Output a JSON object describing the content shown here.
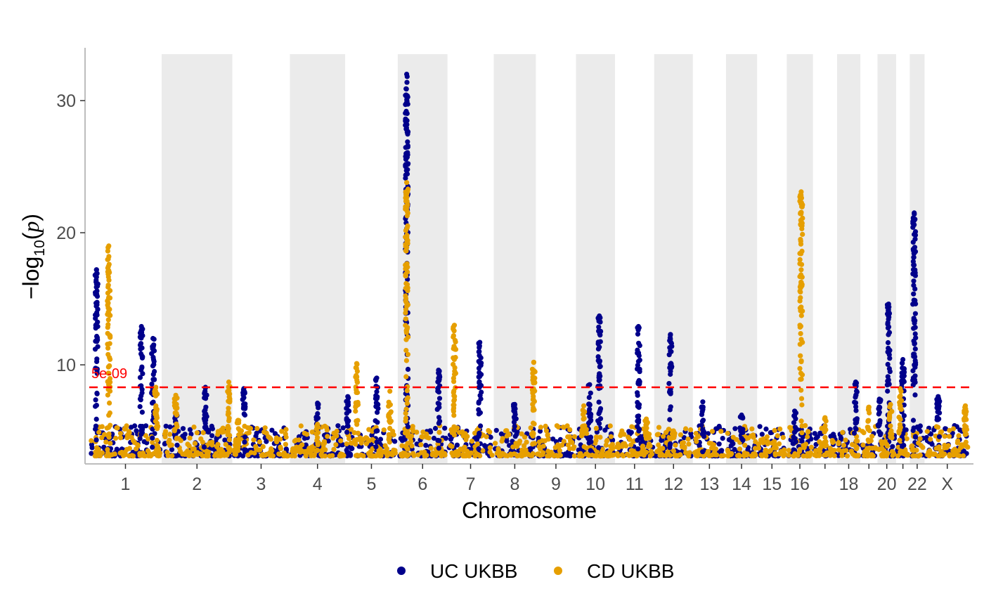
{
  "chart_data": {
    "type": "scatter",
    "title": "",
    "xlabel": "Chromosome",
    "ylabel_parts": [
      "−log",
      "10",
      "(",
      "p",
      ")"
    ],
    "ylim": [
      2.5,
      34
    ],
    "yticks": [
      10,
      20,
      30
    ],
    "threshold": {
      "value": 8.3,
      "label": "5e-09",
      "color": "#ff0000"
    },
    "legend": {
      "position": "bottom"
    },
    "colors": {
      "uc": "#00008b",
      "cd": "#e69f00",
      "band": "#ebebeb",
      "axis": "#bdbdbd"
    },
    "chromosomes": [
      {
        "id": "1",
        "label": "1",
        "len": 249
      },
      {
        "id": "2",
        "label": "2",
        "len": 243
      },
      {
        "id": "3",
        "label": "3",
        "len": 198
      },
      {
        "id": "4",
        "label": "4",
        "len": 190
      },
      {
        "id": "5",
        "label": "5",
        "len": 181
      },
      {
        "id": "6",
        "label": "6",
        "len": 171
      },
      {
        "id": "7",
        "label": "7",
        "len": 159
      },
      {
        "id": "8",
        "label": "8",
        "len": 145
      },
      {
        "id": "9",
        "label": "9",
        "len": 138
      },
      {
        "id": "10",
        "label": "10",
        "len": 134
      },
      {
        "id": "11",
        "label": "11",
        "len": 135
      },
      {
        "id": "12",
        "label": "12",
        "len": 133
      },
      {
        "id": "13",
        "label": "13",
        "len": 114
      },
      {
        "id": "14",
        "label": "14",
        "len": 107
      },
      {
        "id": "15",
        "label": "15",
        "len": 102
      },
      {
        "id": "16",
        "label": "16",
        "len": 90
      },
      {
        "id": "17",
        "label": "",
        "len": 83
      },
      {
        "id": "18",
        "label": "18",
        "len": 80
      },
      {
        "id": "19",
        "label": "",
        "len": 59
      },
      {
        "id": "20",
        "label": "20",
        "len": 64
      },
      {
        "id": "21",
        "label": "",
        "len": 47
      },
      {
        "id": "22",
        "label": "22",
        "len": 51
      },
      {
        "id": "X",
        "label": "X",
        "len": 156
      }
    ],
    "series": [
      {
        "name": "UC UKBB",
        "color": "#00008b",
        "peaks": [
          {
            "chr": "1",
            "pos": 0.1,
            "max": 17.2
          },
          {
            "chr": "1",
            "pos": 0.72,
            "max": 12.9
          },
          {
            "chr": "1",
            "pos": 0.88,
            "max": 12.0
          },
          {
            "chr": "2",
            "pos": 0.2,
            "max": 6.2
          },
          {
            "chr": "2",
            "pos": 0.62,
            "max": 8.3
          },
          {
            "chr": "3",
            "pos": 0.2,
            "max": 8.2
          },
          {
            "chr": "4",
            "pos": 0.5,
            "max": 7.1
          },
          {
            "chr": "5",
            "pos": 0.05,
            "max": 7.6
          },
          {
            "chr": "5",
            "pos": 0.6,
            "max": 9.0
          },
          {
            "chr": "6",
            "pos": 0.18,
            "max": 32.0
          },
          {
            "chr": "6",
            "pos": 0.82,
            "max": 9.6
          },
          {
            "chr": "7",
            "pos": 0.7,
            "max": 11.7
          },
          {
            "chr": "8",
            "pos": 0.5,
            "max": 7.0
          },
          {
            "chr": "10",
            "pos": 0.6,
            "max": 13.7
          },
          {
            "chr": "10",
            "pos": 0.35,
            "max": 8.5
          },
          {
            "chr": "11",
            "pos": 0.6,
            "max": 12.9
          },
          {
            "chr": "12",
            "pos": 0.42,
            "max": 12.3
          },
          {
            "chr": "13",
            "pos": 0.3,
            "max": 7.2
          },
          {
            "chr": "14",
            "pos": 0.5,
            "max": 6.2
          },
          {
            "chr": "16",
            "pos": 0.3,
            "max": 6.5
          },
          {
            "chr": "18",
            "pos": 0.8,
            "max": 8.7
          },
          {
            "chr": "20",
            "pos": 0.1,
            "max": 7.4
          },
          {
            "chr": "20",
            "pos": 0.6,
            "max": 14.6
          },
          {
            "chr": "21",
            "pos": 0.5,
            "max": 10.4
          },
          {
            "chr": "22",
            "pos": 0.3,
            "max": 21.5
          },
          {
            "chr": "X",
            "pos": 0.3,
            "max": 7.6
          }
        ]
      },
      {
        "name": "CD UKBB",
        "color": "#e69f00",
        "peaks": [
          {
            "chr": "1",
            "pos": 0.27,
            "max": 19.0
          },
          {
            "chr": "1",
            "pos": 0.92,
            "max": 8.3
          },
          {
            "chr": "2",
            "pos": 0.2,
            "max": 7.7
          },
          {
            "chr": "2",
            "pos": 0.95,
            "max": 8.7
          },
          {
            "chr": "3",
            "pos": 0.1,
            "max": 5.8
          },
          {
            "chr": "4",
            "pos": 0.5,
            "max": 5.5
          },
          {
            "chr": "5",
            "pos": 0.22,
            "max": 10.1
          },
          {
            "chr": "5",
            "pos": 0.85,
            "max": 8.0
          },
          {
            "chr": "6",
            "pos": 0.18,
            "max": 23.8
          },
          {
            "chr": "7",
            "pos": 0.15,
            "max": 13.0
          },
          {
            "chr": "8",
            "pos": 0.95,
            "max": 10.2
          },
          {
            "chr": "10",
            "pos": 0.2,
            "max": 6.9
          },
          {
            "chr": "11",
            "pos": 0.8,
            "max": 5.9
          },
          {
            "chr": "12",
            "pos": 0.5,
            "max": 5.0
          },
          {
            "chr": "16",
            "pos": 0.55,
            "max": 23.1
          },
          {
            "chr": "17",
            "pos": 0.5,
            "max": 6.0
          },
          {
            "chr": "19",
            "pos": 0.5,
            "max": 6.8
          },
          {
            "chr": "20",
            "pos": 0.7,
            "max": 7.0
          },
          {
            "chr": "21",
            "pos": 0.3,
            "max": 8.2
          },
          {
            "chr": "X",
            "pos": 0.9,
            "max": 6.9
          }
        ]
      }
    ]
  }
}
